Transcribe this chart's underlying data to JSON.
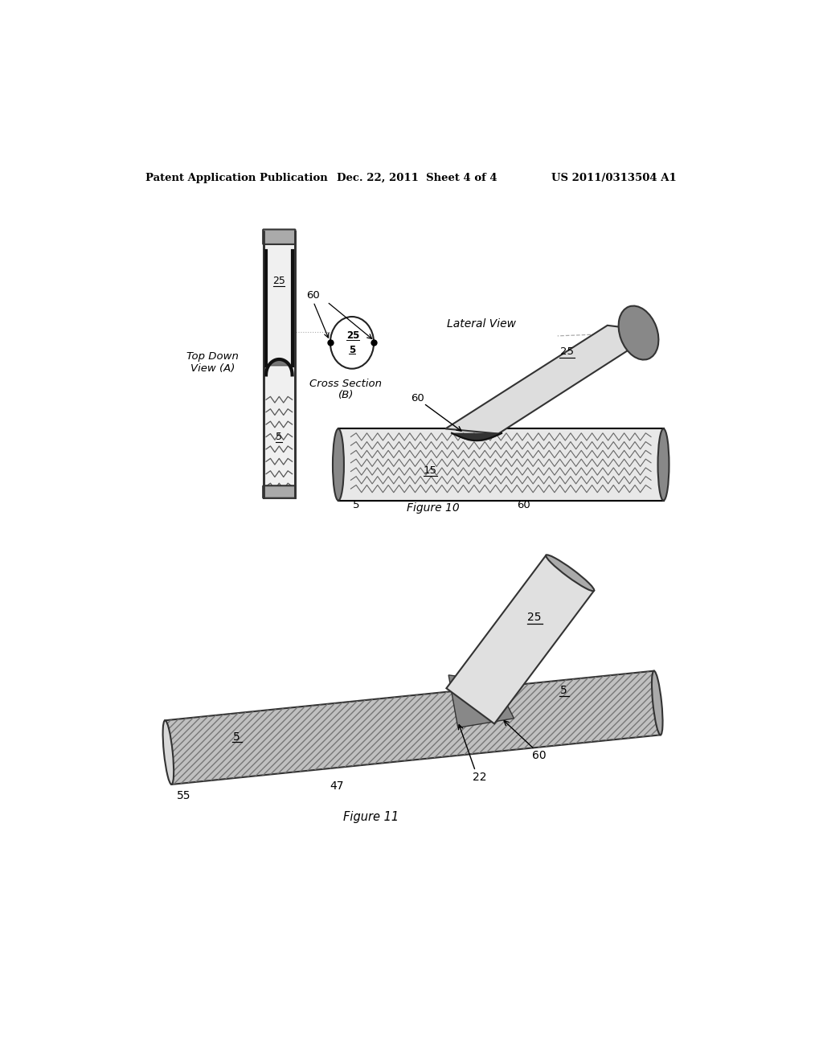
{
  "bg_color": "#ffffff",
  "header_left": "Patent Application Publication",
  "header_mid": "Dec. 22, 2011  Sheet 4 of 4",
  "header_right": "US 2011/0313504 A1",
  "fig10_caption": "Figure 10",
  "fig11_caption": "Figure 11"
}
